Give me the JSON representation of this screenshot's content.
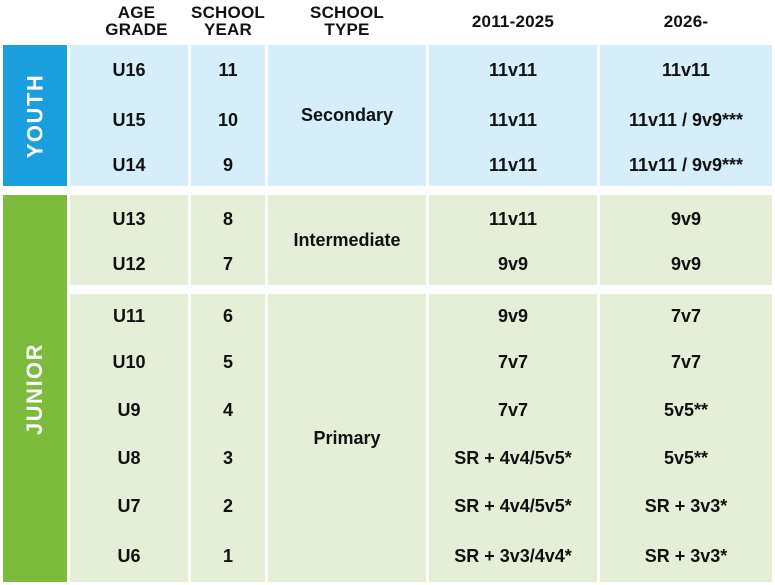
{
  "headers": {
    "age_grade": [
      "AGE",
      "GRADE"
    ],
    "school_year": [
      "SCHOOL",
      "YEAR"
    ],
    "school_type": [
      "SCHOOL",
      "TYPE"
    ],
    "period_2011": "2011-2025",
    "period_2026": "2026-"
  },
  "bands": {
    "youth": "YOUTH",
    "junior": "JUNIOR"
  },
  "school_types": {
    "secondary": "Secondary",
    "intermediate": "Intermediate",
    "primary": "Primary"
  },
  "rows": [
    {
      "age": "U16",
      "year": "11",
      "old": "11v11",
      "new": "11v11"
    },
    {
      "age": "U15",
      "year": "10",
      "old": "11v11",
      "new": "11v11 / 9v9***"
    },
    {
      "age": "U14",
      "year": "9",
      "old": "11v11",
      "new": "11v11 / 9v9***"
    },
    {
      "age": "U13",
      "year": "8",
      "old": "11v11",
      "new": "9v9"
    },
    {
      "age": "U12",
      "year": "7",
      "old": "9v9",
      "new": "9v9"
    },
    {
      "age": "U11",
      "year": "6",
      "old": "9v9",
      "new": "7v7"
    },
    {
      "age": "U10",
      "year": "5",
      "old": "7v7",
      "new": "7v7"
    },
    {
      "age": "U9",
      "year": "4",
      "old": "7v7",
      "new": "5v5**"
    },
    {
      "age": "U8",
      "year": "3",
      "old": "SR + 4v4/5v5*",
      "new": "5v5**"
    },
    {
      "age": "U7",
      "year": "2",
      "old": "SR + 4v4/5v5*",
      "new": "SR + 3v3*"
    },
    {
      "age": "U6",
      "year": "1",
      "old": "SR + 3v3/4v4*",
      "new": "SR + 3v3*"
    }
  ],
  "colors": {
    "youth_band": "#1a9fde",
    "youth_cell": "#d6eefa",
    "junior_band": "#7dbb3c",
    "junior_cell": "#e5efd8"
  }
}
